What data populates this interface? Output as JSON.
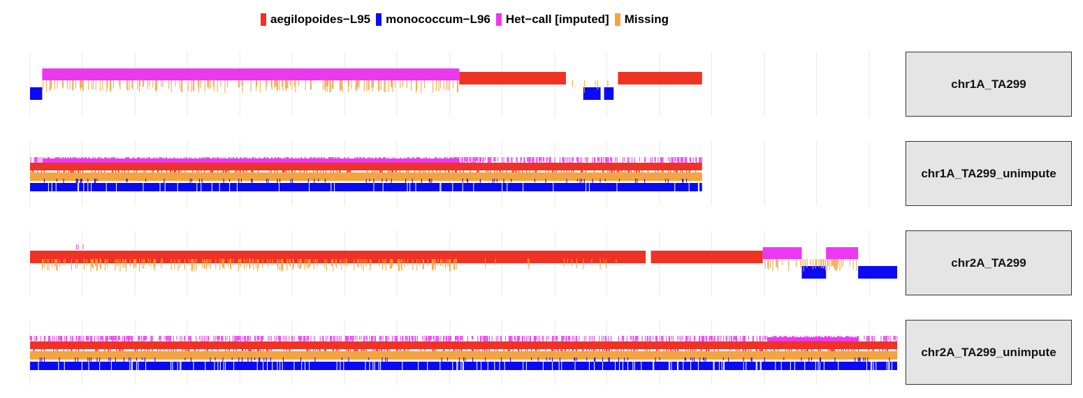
{
  "legend": {
    "items": [
      {
        "label": "aegilopoides−L95",
        "color": "#EE3224"
      },
      {
        "label": "monococcum−L96",
        "color": "#0A0AF5"
      },
      {
        "label": "Het−call [imputed]",
        "color": "#EC38F0"
      },
      {
        "label": "Missing",
        "color": "#F2A440"
      }
    ]
  },
  "chart_data": {
    "type": "genotype-track",
    "title": "",
    "xlabel": "",
    "ylabel": "",
    "facets": [
      {
        "label": "chr1A_TA299",
        "length": 0.775,
        "blocks": [
          {
            "call": "monococcum−L96",
            "start": 0.0,
            "end": 0.014
          },
          {
            "call": "Het−call [imputed]",
            "start": 0.014,
            "end": 0.495
          },
          {
            "call": "aegilopoides−L95",
            "start": 0.495,
            "end": 0.618
          },
          {
            "call": "monococcum−L96",
            "start": 0.638,
            "end": 0.658
          },
          {
            "call": "monococcum−L96",
            "start": 0.662,
            "end": 0.673
          },
          {
            "call": "aegilopoides−L95",
            "start": 0.678,
            "end": 0.775
          }
        ]
      },
      {
        "label": "chr1A_TA299_unimpute",
        "length": 0.775,
        "blocks": [
          {
            "call": "Het−call [imputed]",
            "start": 0.015,
            "end": 0.495
          },
          {
            "call": "aegilopoides−L95",
            "start": 0.0,
            "end": 0.775
          },
          {
            "call": "Missing",
            "start": 0.0,
            "end": 0.775
          },
          {
            "call": "monococcum−L96",
            "start": 0.0,
            "end": 0.775
          }
        ]
      },
      {
        "label": "chr2A_TA299",
        "length": 1.0,
        "blocks": [
          {
            "call": "aegilopoides−L95",
            "start": 0.0,
            "end": 0.71
          },
          {
            "call": "aegilopoides−L95",
            "start": 0.716,
            "end": 0.845
          },
          {
            "call": "Het−call [imputed]",
            "start": 0.845,
            "end": 0.89
          },
          {
            "call": "monococcum−L96",
            "start": 0.89,
            "end": 0.918
          },
          {
            "call": "Het−call [imputed]",
            "start": 0.918,
            "end": 0.955
          },
          {
            "call": "monococcum−L96",
            "start": 0.955,
            "end": 1.0
          }
        ]
      },
      {
        "label": "chr2A_TA299_unimpute",
        "length": 1.0,
        "blocks": [
          {
            "call": "Het−call [imputed]",
            "start": 0.85,
            "end": 0.955
          },
          {
            "call": "aegilopoides−L95",
            "start": 0.0,
            "end": 1.0
          },
          {
            "call": "Missing",
            "start": 0.0,
            "end": 1.0
          },
          {
            "call": "monococcum−L96",
            "start": 0.0,
            "end": 1.0
          }
        ]
      }
    ],
    "xgrid": [
      0.0,
      0.06,
      0.121,
      0.181,
      0.242,
      0.302,
      0.363,
      0.423,
      0.484,
      0.544,
      0.605,
      0.665,
      0.726,
      0.786,
      0.847,
      0.907,
      0.968
    ]
  }
}
